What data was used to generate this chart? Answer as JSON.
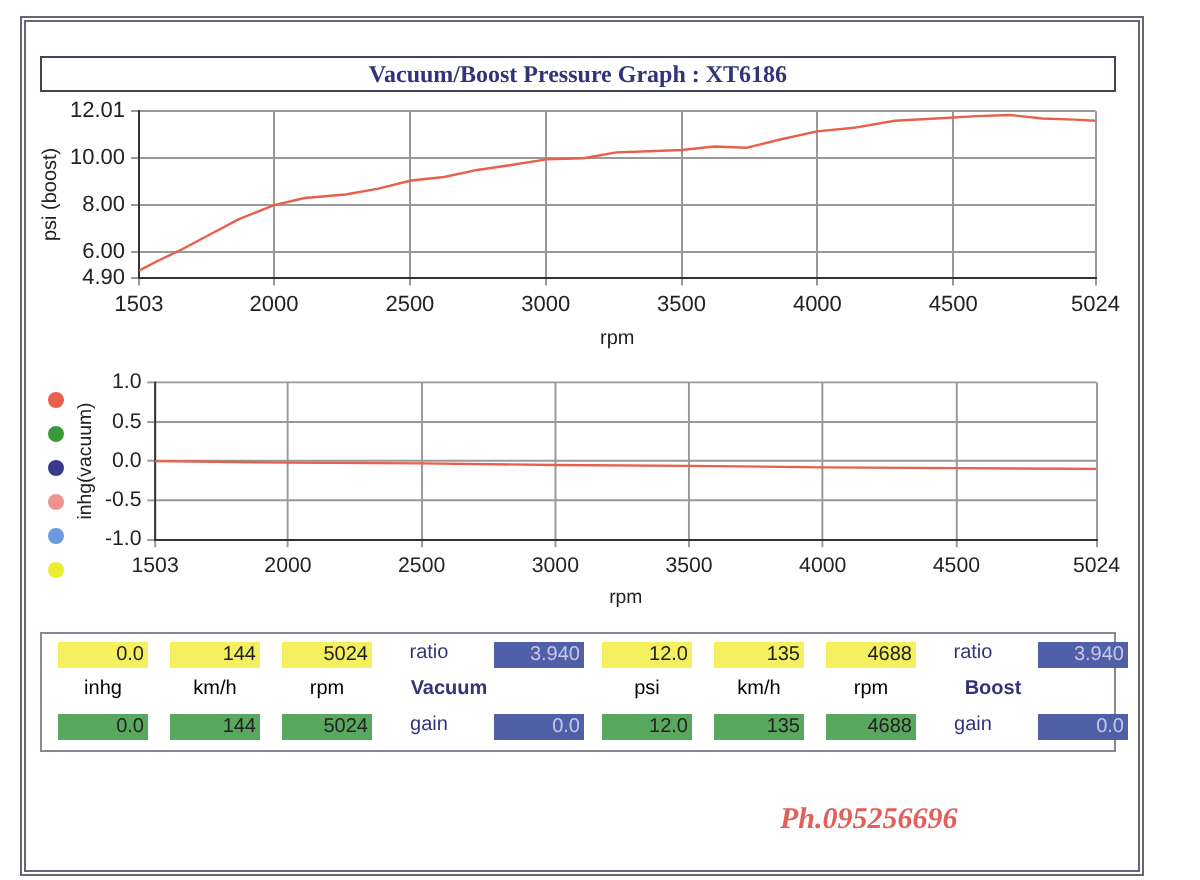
{
  "chart_data": [
    {
      "type": "line",
      "title": "Vacuum/Boost Pressure Graph : XT6186",
      "xlabel": "rpm",
      "ylabel": "psi (boost)",
      "x": [
        1503,
        1569,
        1660,
        1781,
        1871,
        2000,
        2113,
        2263,
        2384,
        2505,
        2626,
        2748,
        2867,
        3003,
        3139,
        3260,
        3380,
        3500,
        3621,
        3742,
        3863,
        3999,
        4134,
        4285,
        4436,
        4587,
        4708,
        4828,
        4949,
        5024
      ],
      "series": [
        {
          "color": "#e8604c",
          "values": [
            5.2,
            5.6,
            6.1,
            6.85,
            7.4,
            8.0,
            8.3,
            8.45,
            8.7,
            9.05,
            9.2,
            9.5,
            9.7,
            9.95,
            10.0,
            10.25,
            10.3,
            10.35,
            10.5,
            10.45,
            10.8,
            11.15,
            11.3,
            11.6,
            11.7,
            11.8,
            11.85,
            11.7,
            11.65,
            11.6
          ]
        }
      ],
      "xlim": [
        1503,
        5024
      ],
      "xticks": [
        1503,
        2000,
        2500,
        3000,
        3500,
        4000,
        4500,
        5024
      ],
      "ylim": [
        4.9,
        12.01
      ],
      "yticks": [
        {
          "value": 4.9,
          "label": "4.90"
        },
        {
          "value": 6,
          "label": "6.00"
        },
        {
          "value": 8,
          "label": "8.00"
        },
        {
          "value": 10,
          "label": "10.00"
        },
        {
          "value": 12.01,
          "label": "12.01"
        }
      ],
      "grid": true,
      "legend": false
    },
    {
      "type": "line",
      "xlabel": "rpm",
      "ylabel": "inhg(vacuum)",
      "x": [
        1503,
        2000,
        2500,
        3000,
        3500,
        4000,
        4500,
        5024
      ],
      "series": [
        {
          "color": "#e8604c",
          "values": [
            0.0,
            -0.02,
            -0.03,
            -0.05,
            -0.06,
            -0.08,
            -0.09,
            -0.1
          ]
        }
      ],
      "xlim": [
        1503,
        5024
      ],
      "xticks": [
        1503,
        2000,
        2500,
        3000,
        3500,
        4000,
        4500,
        5024
      ],
      "ylim": [
        -1,
        1
      ],
      "yticks": [
        {
          "value": -1,
          "label": "-1.0"
        },
        {
          "value": -0.5,
          "label": "-0.5"
        },
        {
          "value": 0,
          "label": "0.0"
        },
        {
          "value": 0.5,
          "label": "0.5"
        },
        {
          "value": 1,
          "label": "1.0"
        }
      ],
      "grid": true,
      "legend": false
    },
    {
      "type": "other",
      "annotations": [
        "0.0",
        "144",
        "5024",
        "ratio",
        "3.940",
        "inhg",
        "km/h",
        "rpm",
        "Vacuum",
        "0.0",
        "144",
        "5024",
        "gain",
        "0.0",
        "12.0",
        "135",
        "4688",
        "ratio",
        "3.940",
        "psi",
        "km/h",
        "rpm",
        "Boost",
        "12.0",
        "135",
        "4688",
        "gain",
        "0.0",
        "Ph.095256696"
      ]
    }
  ]
}
